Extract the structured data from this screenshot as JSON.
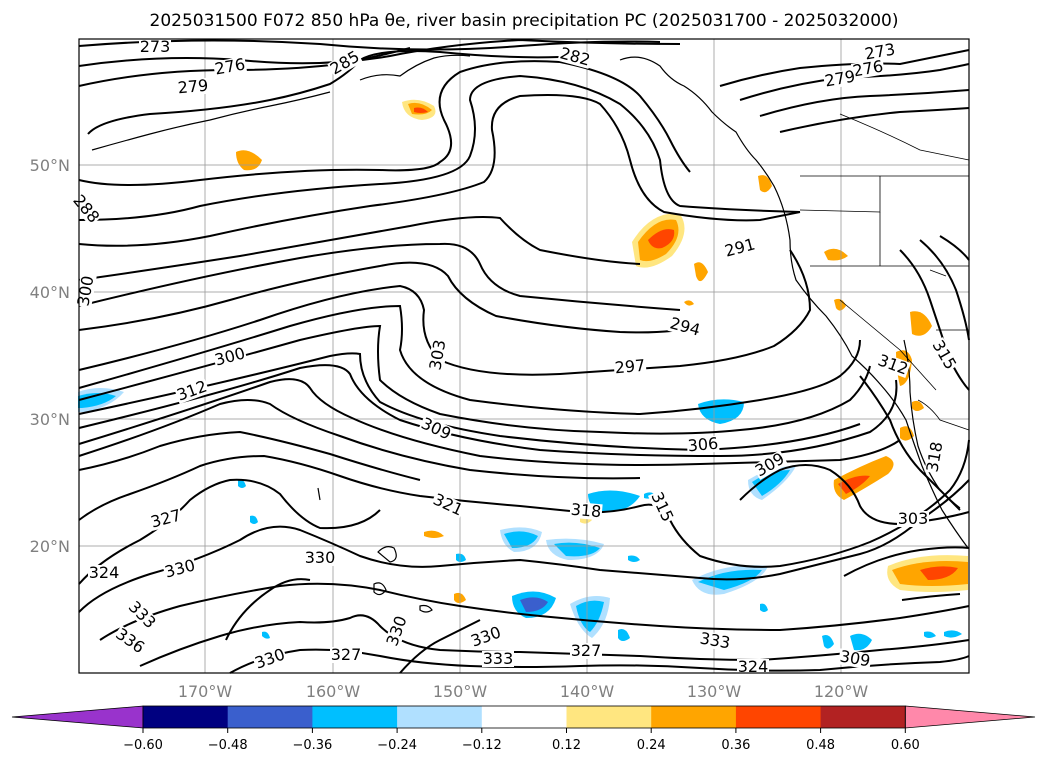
{
  "title": "2025031500 F072 850 hPa θe, river basin precipitation PC (2025031700 - 2025032000)",
  "lat_labels": [
    "50°N",
    "40°N",
    "30°N",
    "20°N"
  ],
  "lon_labels": [
    "170°W",
    "160°W",
    "150°W",
    "140°W",
    "130°W",
    "120°W"
  ],
  "colorbar": {
    "ticks": [
      "−0.60",
      "−0.48",
      "−0.36",
      "−0.24",
      "−0.12",
      "0.12",
      "0.24",
      "0.36",
      "0.48",
      "0.60"
    ],
    "colors": [
      "#9933cc",
      "#000080",
      "#3a5fcd",
      "#00bfff",
      "#b0e0ff",
      "#ffffff",
      "#ffe680",
      "#ffa500",
      "#ff4500",
      "#b22222",
      "#ff88aa"
    ]
  },
  "contour_labels": [
    "273",
    "276",
    "279",
    "285",
    "282",
    "273",
    "276",
    "279",
    "288",
    "300",
    "291",
    "294",
    "300",
    "312",
    "303",
    "297",
    "312",
    "315",
    "309",
    "306",
    "309",
    "327",
    "321",
    "318",
    "315",
    "324",
    "330",
    "330",
    "333",
    "336",
    "330",
    "327",
    "330",
    "330",
    "333",
    "327",
    "333",
    "324",
    "309",
    "303",
    "318"
  ]
}
